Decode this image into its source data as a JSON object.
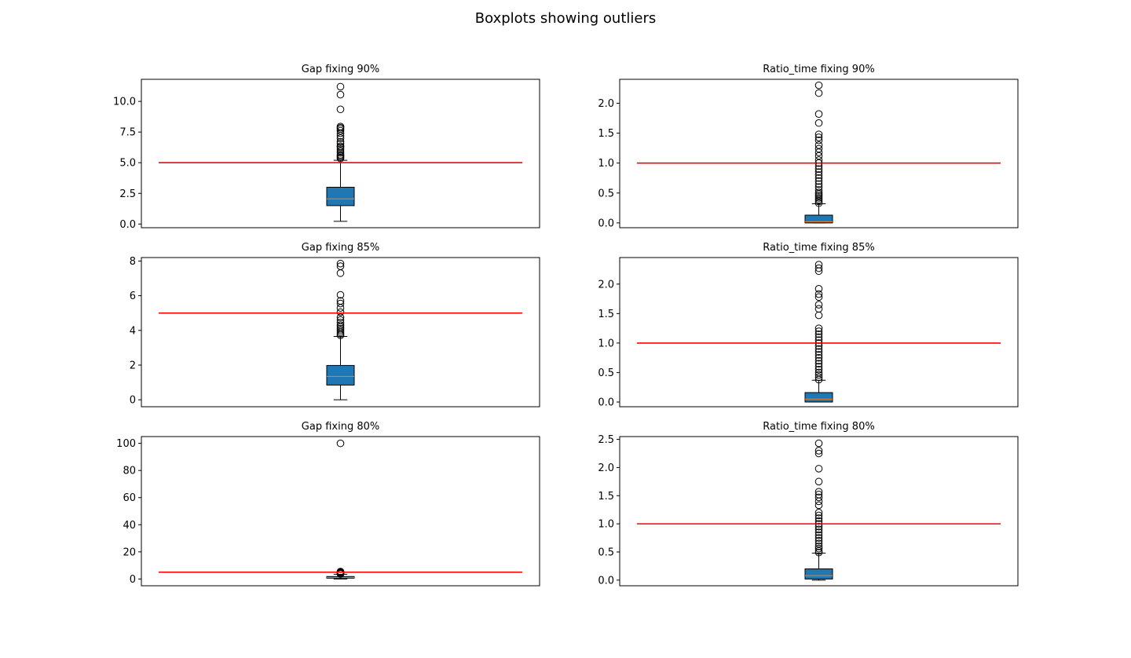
{
  "figure": {
    "suptitle": "Boxplots showing outliers"
  },
  "colors": {
    "box_fill": "#1f77b4",
    "median": "#ff7f0e",
    "threshold_line": "#ff0000",
    "outline": "#000000"
  },
  "chart_data": [
    {
      "type": "box",
      "title": "Gap fixing 90%",
      "ylim": [
        -0.3,
        11.8
      ],
      "yticks": [
        0.0,
        2.5,
        5.0,
        7.5,
        10.0
      ],
      "ytick_labels": [
        "0.0",
        "2.5",
        "5.0",
        "7.5",
        "10.0"
      ],
      "xticks_visible": false,
      "box": {
        "whisker_low": 0.22,
        "q1": 1.5,
        "median": 2.05,
        "q3": 3.0,
        "whisker_high": 5.2
      },
      "outliers": [
        5.35,
        5.45,
        5.55,
        5.65,
        5.8,
        5.95,
        6.1,
        6.25,
        6.35,
        6.55,
        6.7,
        7.0,
        7.2,
        7.4,
        7.6,
        7.75,
        7.85,
        7.95,
        9.35,
        10.55,
        11.2
      ],
      "threshold": 5.0
    },
    {
      "type": "box",
      "title": "Ratio_time fixing 90%",
      "ylim": [
        -0.08,
        2.4
      ],
      "yticks": [
        0.0,
        0.5,
        1.0,
        1.5,
        2.0
      ],
      "ytick_labels": [
        "0.0",
        "0.5",
        "1.0",
        "1.5",
        "2.0"
      ],
      "xticks_visible": false,
      "box": {
        "whisker_low": 0.0,
        "q1": 0.0,
        "median": 0.02,
        "q3": 0.13,
        "whisker_high": 0.32
      },
      "outliers": [
        0.33,
        0.36,
        0.39,
        0.42,
        0.45,
        0.48,
        0.51,
        0.55,
        0.6,
        0.65,
        0.7,
        0.75,
        0.8,
        0.85,
        0.9,
        0.95,
        1.0,
        1.05,
        1.12,
        1.18,
        1.24,
        1.3,
        1.38,
        1.43,
        1.48,
        1.67,
        1.82,
        2.17,
        2.3
      ],
      "threshold": 1.0
    },
    {
      "type": "box",
      "title": "Gap fixing 85%",
      "ylim": [
        -0.4,
        8.2
      ],
      "yticks": [
        0,
        2,
        4,
        6,
        8
      ],
      "ytick_labels": [
        "0",
        "2",
        "4",
        "6",
        "8"
      ],
      "xticks_visible": false,
      "box": {
        "whisker_low": 0.0,
        "q1": 0.85,
        "median": 1.35,
        "q3": 1.98,
        "whisker_high": 3.65
      },
      "outliers": [
        3.72,
        3.8,
        3.9,
        4.0,
        4.1,
        4.2,
        4.3,
        4.45,
        4.6,
        4.75,
        5.05,
        5.3,
        5.55,
        5.7,
        6.05,
        7.3,
        7.7,
        7.85
      ],
      "threshold": 5.0
    },
    {
      "type": "box",
      "title": "Ratio_time fixing 85%",
      "ylim": [
        -0.08,
        2.45
      ],
      "yticks": [
        0.0,
        0.5,
        1.0,
        1.5,
        2.0
      ],
      "ytick_labels": [
        "0.0",
        "0.5",
        "1.0",
        "1.5",
        "2.0"
      ],
      "xticks_visible": false,
      "box": {
        "whisker_low": 0.0,
        "q1": 0.0,
        "median": 0.05,
        "q3": 0.16,
        "whisker_high": 0.37
      },
      "outliers": [
        0.38,
        0.42,
        0.46,
        0.5,
        0.55,
        0.6,
        0.65,
        0.7,
        0.75,
        0.8,
        0.85,
        0.9,
        0.95,
        1.0,
        1.05,
        1.1,
        1.15,
        1.2,
        1.25,
        1.47,
        1.58,
        1.65,
        1.78,
        1.83,
        1.92,
        2.22,
        2.27,
        2.33
      ],
      "threshold": 1.0
    },
    {
      "type": "box",
      "title": "Gap fixing 80%",
      "ylim": [
        -5,
        105
      ],
      "yticks": [
        0,
        20,
        40,
        60,
        80,
        100
      ],
      "ytick_labels": [
        "0",
        "20",
        "40",
        "60",
        "80",
        "100"
      ],
      "xticks_visible": false,
      "box": {
        "whisker_low": 0.0,
        "q1": 0.6,
        "median": 1.1,
        "q3": 1.8,
        "whisker_high": 3.5
      },
      "outliers": [
        3.7,
        4.0,
        4.3,
        4.6,
        4.9,
        5.2,
        5.5,
        100.0
      ],
      "threshold": 5.0
    },
    {
      "type": "box",
      "title": "Ratio_time fixing 80%",
      "ylim": [
        -0.1,
        2.55
      ],
      "yticks": [
        0.0,
        0.5,
        1.0,
        1.5,
        2.0,
        2.5
      ],
      "ytick_labels": [
        "0.0",
        "0.5",
        "1.0",
        "1.5",
        "2.0",
        "2.5"
      ],
      "xticks_visible": false,
      "box": {
        "whisker_low": 0.0,
        "q1": 0.02,
        "median": 0.08,
        "q3": 0.2,
        "whisker_high": 0.48
      },
      "outliers": [
        0.49,
        0.52,
        0.56,
        0.6,
        0.65,
        0.7,
        0.75,
        0.8,
        0.85,
        0.9,
        0.95,
        1.0,
        1.05,
        1.1,
        1.15,
        1.2,
        1.33,
        1.4,
        1.47,
        1.52,
        1.57,
        1.75,
        1.98,
        2.25,
        2.3,
        2.43
      ],
      "threshold": 1.0
    }
  ]
}
